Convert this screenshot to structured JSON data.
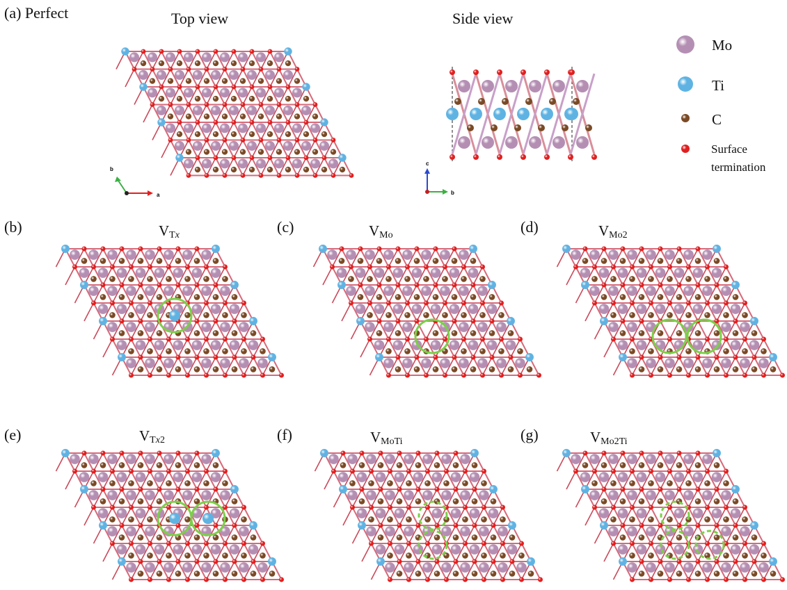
{
  "panel_a": {
    "label": "(a) Perfect",
    "top_view_title": "Top view",
    "side_view_title": "Side view",
    "top_axes": [
      "b",
      "a"
    ],
    "side_axes": [
      "c",
      "b"
    ]
  },
  "legend": {
    "items": [
      {
        "name": "Mo",
        "color": "#b48fb3"
      },
      {
        "name": "Ti",
        "color": "#5fb3e3"
      },
      {
        "name": "C",
        "color": "#7a4a26"
      },
      {
        "name": "Surface",
        "name2": "termination",
        "color": "#e02020"
      }
    ]
  },
  "panels": [
    {
      "id": "b",
      "label": "(b)",
      "title_main": "V",
      "title_sub": "T",
      "title_sub_it": "x",
      "title_sub2": ""
    },
    {
      "id": "c",
      "label": "(c)",
      "title_main": "V",
      "title_sub": "Mo",
      "title_sub_it": "",
      "title_sub2": ""
    },
    {
      "id": "d",
      "label": "(d)",
      "title_main": "V",
      "title_sub": "Mo2",
      "title_sub_it": "",
      "title_sub2": ""
    },
    {
      "id": "e",
      "label": "(e)",
      "title_main": "V",
      "title_sub": "T",
      "title_sub_it": "x",
      "title_sub2": "2"
    },
    {
      "id": "f",
      "label": "(f)",
      "title_main": "V",
      "title_sub": "MoTi",
      "title_sub_it": "",
      "title_sub2": ""
    },
    {
      "id": "g",
      "label": "(g)",
      "title_main": "V",
      "title_sub": "Mo2Ti",
      "title_sub_it": "",
      "title_sub2": ""
    }
  ],
  "colors": {
    "mo": "#b48fb3",
    "ti": "#5fb3e3",
    "c": "#7a4a26",
    "o": "#e02020",
    "vacancy_ring": "#7ccf4a"
  }
}
